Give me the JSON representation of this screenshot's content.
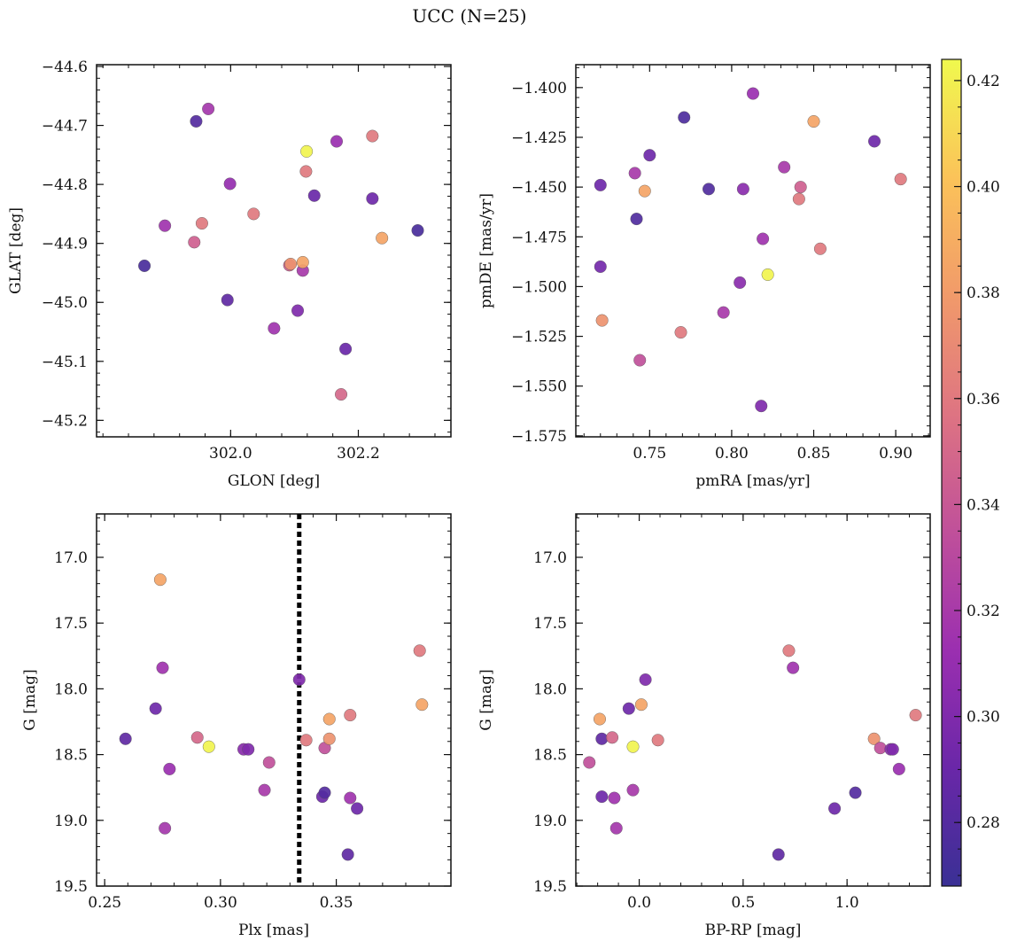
{
  "figure": {
    "title": "UCC (N=25)"
  },
  "colorbar": {
    "range": [
      0.268,
      0.424
    ],
    "ticks": [
      0.28,
      0.3,
      0.32,
      0.34,
      0.36,
      0.38,
      0.4,
      0.42
    ],
    "tick_labels": [
      "0.28",
      "0.30",
      "0.32",
      "0.34",
      "0.36",
      "0.38",
      "0.40",
      "0.42"
    ],
    "colormap_stops": [
      "#3a3095",
      "#6a27a8",
      "#9b2fb0",
      "#c0509a",
      "#de7482",
      "#f19a6a",
      "#fbc359",
      "#f0f94e"
    ]
  },
  "chart_data": [
    {
      "type": "scatter",
      "xlabel": "GLON [deg]",
      "ylabel": "GLAT [deg]",
      "xlim": [
        301.79,
        302.345
      ],
      "ylim": [
        -45.228,
        -44.597
      ],
      "x_ticks": [
        302.0,
        302.2
      ],
      "x_tick_labels": [
        "302.0",
        "302.2"
      ],
      "y_ticks": [
        -44.6,
        -44.7,
        -44.8,
        -44.9,
        -45.0,
        -45.1,
        -45.2
      ],
      "y_tick_labels": [
        "−44.6",
        "−44.7",
        "−44.8",
        "−44.9",
        "−45.0",
        "−45.1",
        "−45.2"
      ],
      "vline": null,
      "points": [
        {
          "x": 301.865,
          "y": -44.938,
          "c": 0.275
        },
        {
          "x": 301.897,
          "y": -44.87,
          "c": 0.315
        },
        {
          "x": 301.943,
          "y": -44.898,
          "c": 0.345
        },
        {
          "x": 301.946,
          "y": -44.693,
          "c": 0.28
        },
        {
          "x": 301.955,
          "y": -44.866,
          "c": 0.36
        },
        {
          "x": 301.965,
          "y": -44.672,
          "c": 0.318
        },
        {
          "x": 301.995,
          "y": -44.996,
          "c": 0.285
        },
        {
          "x": 301.999,
          "y": -44.799,
          "c": 0.31
        },
        {
          "x": 302.036,
          "y": -44.85,
          "c": 0.36
        },
        {
          "x": 302.068,
          "y": -45.044,
          "c": 0.315
        },
        {
          "x": 302.092,
          "y": -44.937,
          "c": 0.345
        },
        {
          "x": 302.094,
          "y": -44.935,
          "c": 0.375
        },
        {
          "x": 302.105,
          "y": -45.014,
          "c": 0.3
        },
        {
          "x": 302.113,
          "y": -44.946,
          "c": 0.32
        },
        {
          "x": 302.113,
          "y": -44.932,
          "c": 0.385
        },
        {
          "x": 302.118,
          "y": -44.778,
          "c": 0.36
        },
        {
          "x": 302.119,
          "y": -44.744,
          "c": 0.422
        },
        {
          "x": 302.131,
          "y": -44.819,
          "c": 0.29
        },
        {
          "x": 302.166,
          "y": -44.727,
          "c": 0.312
        },
        {
          "x": 302.173,
          "y": -45.156,
          "c": 0.35
        },
        {
          "x": 302.18,
          "y": -45.079,
          "c": 0.29
        },
        {
          "x": 302.222,
          "y": -44.824,
          "c": 0.292
        },
        {
          "x": 302.222,
          "y": -44.718,
          "c": 0.36
        },
        {
          "x": 302.237,
          "y": -44.891,
          "c": 0.385
        },
        {
          "x": 302.293,
          "y": -44.878,
          "c": 0.275
        }
      ]
    },
    {
      "type": "scatter",
      "xlabel": "pmRA [mas/yr]",
      "ylabel": "pmDE [mas/yr]",
      "xlim": [
        0.705,
        0.921
      ],
      "ylim": [
        -1.5755,
        -1.3885
      ],
      "x_ticks": [
        0.75,
        0.8,
        0.85,
        0.9
      ],
      "x_tick_labels": [
        "0.75",
        "0.80",
        "0.85",
        "0.90"
      ],
      "y_ticks": [
        -1.4,
        -1.425,
        -1.45,
        -1.475,
        -1.5,
        -1.525,
        -1.55,
        -1.575
      ],
      "y_tick_labels": [
        "−1.400",
        "−1.425",
        "−1.450",
        "−1.475",
        "−1.500",
        "−1.525",
        "−1.550",
        "−1.575"
      ],
      "vline": null,
      "points": [
        {
          "x": 0.72,
          "y": -1.449,
          "c": 0.292
        },
        {
          "x": 0.72,
          "y": -1.49,
          "c": 0.295
        },
        {
          "x": 0.721,
          "y": -1.517,
          "c": 0.375
        },
        {
          "x": 0.741,
          "y": -1.443,
          "c": 0.32
        },
        {
          "x": 0.742,
          "y": -1.466,
          "c": 0.278
        },
        {
          "x": 0.744,
          "y": -1.537,
          "c": 0.335
        },
        {
          "x": 0.747,
          "y": -1.452,
          "c": 0.385
        },
        {
          "x": 0.75,
          "y": -1.434,
          "c": 0.292
        },
        {
          "x": 0.769,
          "y": -1.523,
          "c": 0.36
        },
        {
          "x": 0.771,
          "y": -1.415,
          "c": 0.277
        },
        {
          "x": 0.786,
          "y": -1.451,
          "c": 0.278
        },
        {
          "x": 0.795,
          "y": -1.513,
          "c": 0.32
        },
        {
          "x": 0.805,
          "y": -1.498,
          "c": 0.305
        },
        {
          "x": 0.807,
          "y": -1.451,
          "c": 0.305
        },
        {
          "x": 0.813,
          "y": -1.403,
          "c": 0.312
        },
        {
          "x": 0.818,
          "y": -1.56,
          "c": 0.3
        },
        {
          "x": 0.819,
          "y": -1.476,
          "c": 0.315
        },
        {
          "x": 0.822,
          "y": -1.494,
          "c": 0.422
        },
        {
          "x": 0.832,
          "y": -1.44,
          "c": 0.32
        },
        {
          "x": 0.841,
          "y": -1.456,
          "c": 0.36
        },
        {
          "x": 0.842,
          "y": -1.45,
          "c": 0.345
        },
        {
          "x": 0.85,
          "y": -1.417,
          "c": 0.385
        },
        {
          "x": 0.854,
          "y": -1.481,
          "c": 0.36
        },
        {
          "x": 0.887,
          "y": -1.427,
          "c": 0.292
        },
        {
          "x": 0.903,
          "y": -1.446,
          "c": 0.36
        }
      ]
    },
    {
      "type": "scatter",
      "xlabel": "Plx [mas]",
      "ylabel": "G [mag]",
      "xlim": [
        0.2465,
        0.3995
      ],
      "ylim": [
        16.67,
        19.5
      ],
      "y_inverted": true,
      "x_ticks": [
        0.25,
        0.3,
        0.35
      ],
      "x_tick_labels": [
        "0.25",
        "0.30",
        "0.35"
      ],
      "y_ticks": [
        17.0,
        17.5,
        18.0,
        18.5,
        19.0,
        19.5
      ],
      "y_tick_labels": [
        "17.0",
        "17.5",
        "18.0",
        "18.5",
        "19.0",
        "19.5"
      ],
      "vline": {
        "x": 0.334,
        "style": "dotted"
      },
      "points": [
        {
          "x": 0.259,
          "y": 18.38,
          "c": 0.285
        },
        {
          "x": 0.272,
          "y": 18.15,
          "c": 0.292
        },
        {
          "x": 0.274,
          "y": 17.17,
          "c": 0.385
        },
        {
          "x": 0.275,
          "y": 17.84,
          "c": 0.315
        },
        {
          "x": 0.276,
          "y": 19.06,
          "c": 0.318
        },
        {
          "x": 0.278,
          "y": 18.61,
          "c": 0.312
        },
        {
          "x": 0.29,
          "y": 18.37,
          "c": 0.35
        },
        {
          "x": 0.295,
          "y": 18.44,
          "c": 0.422
        },
        {
          "x": 0.31,
          "y": 18.46,
          "c": 0.305
        },
        {
          "x": 0.312,
          "y": 18.46,
          "c": 0.3
        },
        {
          "x": 0.319,
          "y": 18.77,
          "c": 0.32
        },
        {
          "x": 0.321,
          "y": 18.56,
          "c": 0.335
        },
        {
          "x": 0.334,
          "y": 17.93,
          "c": 0.3
        },
        {
          "x": 0.337,
          "y": 18.39,
          "c": 0.36
        },
        {
          "x": 0.344,
          "y": 18.82,
          "c": 0.292
        },
        {
          "x": 0.345,
          "y": 18.79,
          "c": 0.28
        },
        {
          "x": 0.345,
          "y": 18.45,
          "c": 0.335
        },
        {
          "x": 0.347,
          "y": 18.23,
          "c": 0.385
        },
        {
          "x": 0.347,
          "y": 18.38,
          "c": 0.375
        },
        {
          "x": 0.355,
          "y": 19.26,
          "c": 0.285
        },
        {
          "x": 0.356,
          "y": 18.83,
          "c": 0.315
        },
        {
          "x": 0.356,
          "y": 18.2,
          "c": 0.36
        },
        {
          "x": 0.359,
          "y": 18.91,
          "c": 0.292
        },
        {
          "x": 0.386,
          "y": 17.71,
          "c": 0.36
        },
        {
          "x": 0.387,
          "y": 18.12,
          "c": 0.385
        }
      ]
    },
    {
      "type": "scatter",
      "xlabel": "BP-RP [mag]",
      "ylabel": "G [mag]",
      "xlim": [
        -0.305,
        1.4
      ],
      "ylim": [
        16.67,
        19.5
      ],
      "y_inverted": true,
      "x_ticks": [
        0.0,
        0.5,
        1.0
      ],
      "x_tick_labels": [
        "0.0",
        "0.5",
        "1.0"
      ],
      "y_ticks": [
        17.0,
        17.5,
        18.0,
        18.5,
        19.0,
        19.5
      ],
      "y_tick_labels": [
        "17.0",
        "17.5",
        "18.0",
        "18.5",
        "19.0",
        "19.5"
      ],
      "vline": null,
      "points": [
        {
          "x": -0.24,
          "y": 18.56,
          "c": 0.335
        },
        {
          "x": -0.19,
          "y": 18.23,
          "c": 0.385
        },
        {
          "x": -0.18,
          "y": 18.38,
          "c": 0.285
        },
        {
          "x": -0.18,
          "y": 18.82,
          "c": 0.292
        },
        {
          "x": -0.13,
          "y": 18.37,
          "c": 0.35
        },
        {
          "x": -0.12,
          "y": 18.83,
          "c": 0.315
        },
        {
          "x": -0.11,
          "y": 19.06,
          "c": 0.318
        },
        {
          "x": -0.05,
          "y": 18.15,
          "c": 0.292
        },
        {
          "x": -0.03,
          "y": 18.77,
          "c": 0.32
        },
        {
          "x": -0.03,
          "y": 18.44,
          "c": 0.422
        },
        {
          "x": 0.01,
          "y": 18.12,
          "c": 0.385
        },
        {
          "x": 0.03,
          "y": 17.93,
          "c": 0.3
        },
        {
          "x": 0.09,
          "y": 18.39,
          "c": 0.36
        },
        {
          "x": 0.67,
          "y": 19.26,
          "c": 0.285
        },
        {
          "x": 0.72,
          "y": 17.71,
          "c": 0.36
        },
        {
          "x": 0.74,
          "y": 17.84,
          "c": 0.315
        },
        {
          "x": 0.94,
          "y": 18.91,
          "c": 0.292
        },
        {
          "x": 1.04,
          "y": 18.79,
          "c": 0.28
        },
        {
          "x": 1.13,
          "y": 18.38,
          "c": 0.375
        },
        {
          "x": 1.16,
          "y": 18.45,
          "c": 0.335
        },
        {
          "x": 1.21,
          "y": 18.46,
          "c": 0.305
        },
        {
          "x": 1.22,
          "y": 18.46,
          "c": 0.3
        },
        {
          "x": 1.25,
          "y": 18.61,
          "c": 0.312
        },
        {
          "x": 1.33,
          "y": 18.2,
          "c": 0.36
        }
      ]
    }
  ]
}
